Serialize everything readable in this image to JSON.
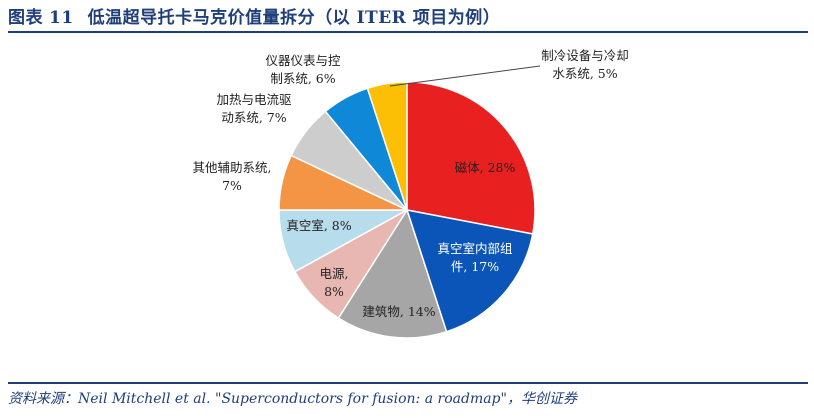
{
  "figure": {
    "label": "图表",
    "number": "11",
    "title": "低温超导托卡马克价值量拆分（以 ITER 项目为例）"
  },
  "source": "资料来源：Neil Mitchell et al. \"Superconductors for fusion: a roadmap\"，华创证券",
  "chart_data": {
    "type": "pie",
    "title": "",
    "slices": [
      {
        "label_lines": [
          "磁体, 28%"
        ],
        "value": 28,
        "color": "#e8201f"
      },
      {
        "label_lines": [
          "真空室内部组",
          "件, 17%"
        ],
        "value": 17,
        "color": "#0b55b8"
      },
      {
        "label_lines": [
          "建筑物, 14%"
        ],
        "value": 14,
        "color": "#a6a6a6"
      },
      {
        "label_lines": [
          "电源,",
          "8%"
        ],
        "value": 8,
        "color": "#e9b7b2"
      },
      {
        "label_lines": [
          "真空室, 8%"
        ],
        "value": 8,
        "color": "#b7dceb"
      },
      {
        "label_lines": [
          "其他辅助系统,",
          "7%"
        ],
        "value": 7,
        "color": "#f39545"
      },
      {
        "label_lines": [
          "加热与电流驱",
          "动系统, 7%"
        ],
        "value": 7,
        "color": "#cdcdcd"
      },
      {
        "label_lines": [
          "仪器仪表与控",
          "制系统, 6%"
        ],
        "value": 6,
        "color": "#1088d8"
      },
      {
        "label_lines": [
          "制冷设备与冷却",
          "水系统, 5%"
        ],
        "value": 5,
        "color": "#fcbf05"
      }
    ]
  }
}
